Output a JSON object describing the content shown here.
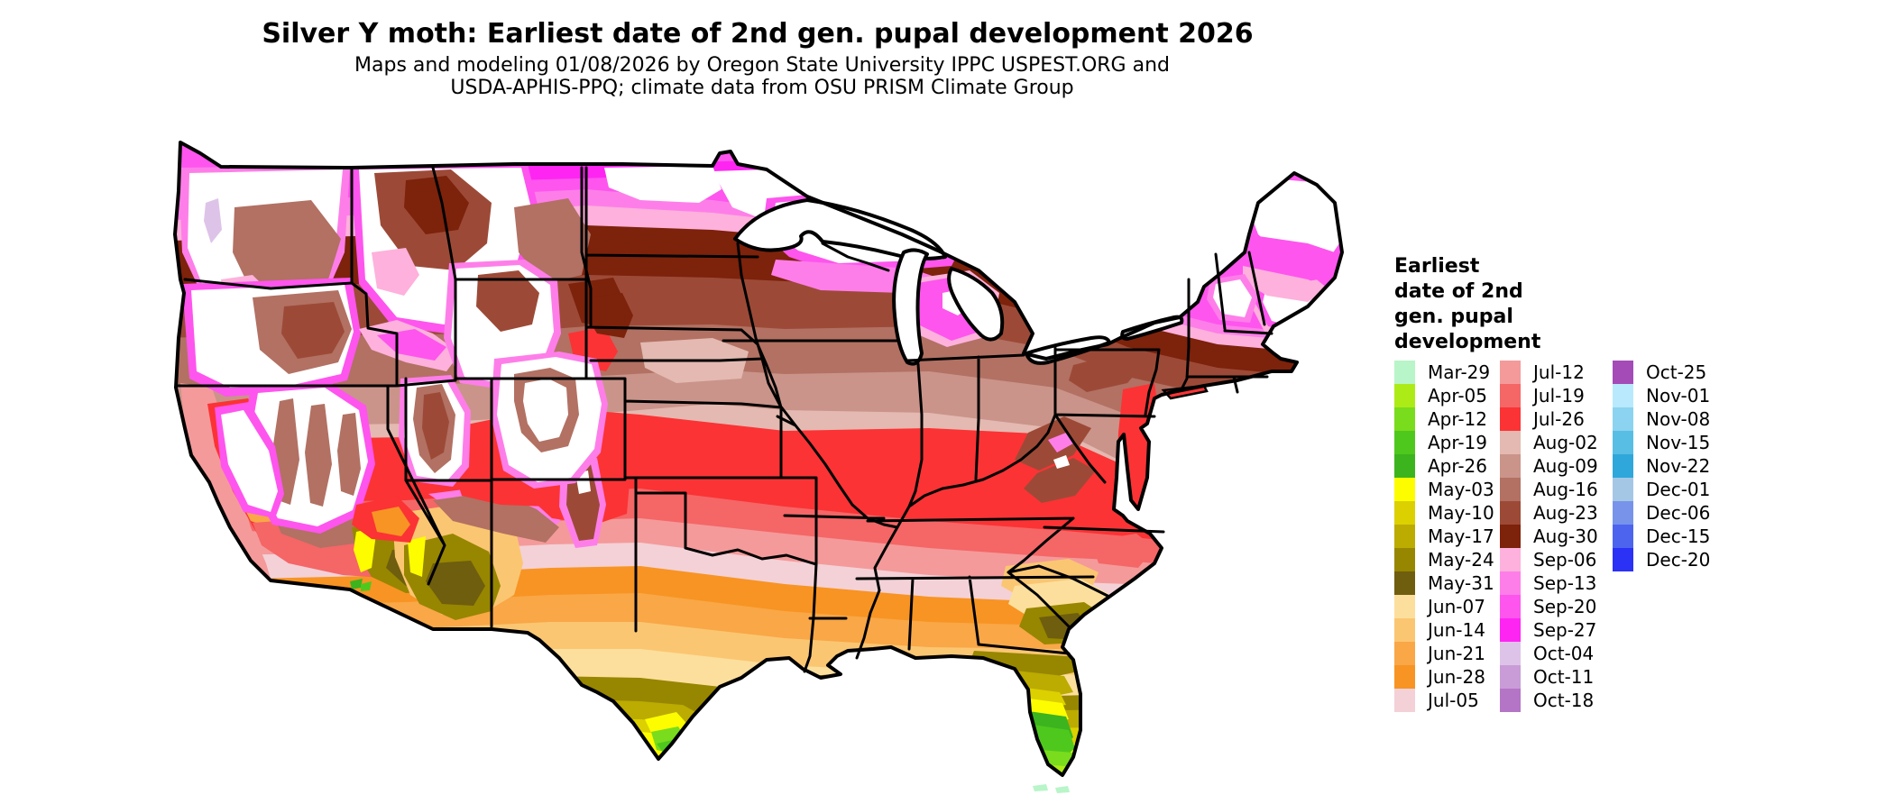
{
  "title": "Silver Y moth: Earliest date of 2nd gen. pupal development 2026",
  "subtitle": {
    "line1": "Maps and modeling 01/08/2026 by Oregon State University IPPC USPEST.ORG and",
    "line2": "USDA-APHIS-PPQ; climate data from OSU PRISM Climate Group"
  },
  "legend": {
    "title_lines": [
      "Earliest",
      "date of 2nd",
      "gen. pupal",
      "development"
    ],
    "columns": [
      {
        "entries": [
          {
            "label": "Mar-29",
            "color": "#b8f5c8"
          },
          {
            "label": "Apr-05",
            "color": "#adeb17"
          },
          {
            "label": "Apr-12",
            "color": "#79dc1d"
          },
          {
            "label": "Apr-19",
            "color": "#4fc81e"
          },
          {
            "label": "Apr-26",
            "color": "#3cb41e"
          },
          {
            "label": "May-03",
            "color": "#fdfd00"
          },
          {
            "label": "May-10",
            "color": "#dcd000"
          },
          {
            "label": "May-17",
            "color": "#bcab00"
          },
          {
            "label": "May-24",
            "color": "#978600"
          },
          {
            "label": "May-31",
            "color": "#6e5e0e"
          },
          {
            "label": "Jun-07",
            "color": "#fcdf9c"
          },
          {
            "label": "Jun-14",
            "color": "#fbc672"
          },
          {
            "label": "Jun-21",
            "color": "#f9a747"
          },
          {
            "label": "Jun-28",
            "color": "#f89423"
          },
          {
            "label": "Jul-05",
            "color": "#f3d1d7"
          }
        ]
      },
      {
        "entries": [
          {
            "label": "Jul-12",
            "color": "#f49a9a"
          },
          {
            "label": "Jul-19",
            "color": "#f56667"
          },
          {
            "label": "Jul-26",
            "color": "#fb3335"
          },
          {
            "label": "Aug-02",
            "color": "#e3b9b1"
          },
          {
            "label": "Aug-09",
            "color": "#ca948a"
          },
          {
            "label": "Aug-16",
            "color": "#b27163"
          },
          {
            "label": "Aug-23",
            "color": "#9c4a37"
          },
          {
            "label": "Aug-30",
            "color": "#7d220b"
          },
          {
            "label": "Sep-06",
            "color": "#feb1dc"
          },
          {
            "label": "Sep-13",
            "color": "#fe7ee9"
          },
          {
            "label": "Sep-20",
            "color": "#fe55ee"
          },
          {
            "label": "Sep-27",
            "color": "#fe25f2"
          },
          {
            "label": "Oct-04",
            "color": "#dec3e9"
          },
          {
            "label": "Oct-11",
            "color": "#c99cd7"
          },
          {
            "label": "Oct-18",
            "color": "#b475c6"
          }
        ]
      },
      {
        "entries": [
          {
            "label": "Oct-25",
            "color": "#a44bb8"
          },
          {
            "label": "Nov-01",
            "color": "#b9e9fc"
          },
          {
            "label": "Nov-08",
            "color": "#8bd3f0"
          },
          {
            "label": "Nov-15",
            "color": "#58bee4"
          },
          {
            "label": "Nov-22",
            "color": "#2fa7da"
          },
          {
            "label": "Dec-01",
            "color": "#a5c7e6"
          },
          {
            "label": "Dec-06",
            "color": "#7794ea"
          },
          {
            "label": "Dec-15",
            "color": "#4c64ee"
          },
          {
            "label": "Dec-20",
            "color": "#2b31f5"
          }
        ]
      }
    ]
  },
  "map": {
    "region": "Contiguous United States",
    "no_data_color": "#ffffff",
    "border_color": "#000000"
  }
}
